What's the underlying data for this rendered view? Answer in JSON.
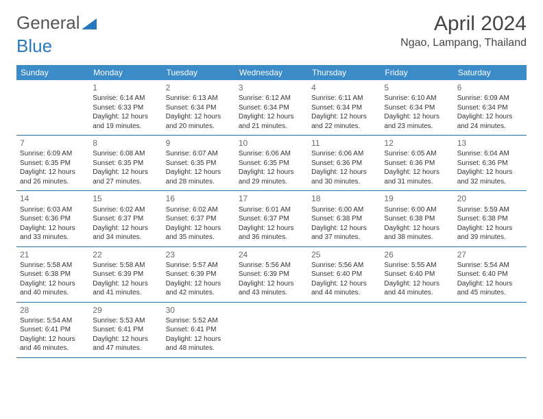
{
  "logo": {
    "part1": "General",
    "part2": "Blue"
  },
  "title": "April 2024",
  "location": "Ngao, Lampang, Thailand",
  "colors": {
    "header_bg": "#3b8bc9",
    "header_text": "#ffffff",
    "row_border": "#2a6fa3",
    "text": "#333333",
    "daynum": "#6a6a6a"
  },
  "weekdays": [
    "Sunday",
    "Monday",
    "Tuesday",
    "Wednesday",
    "Thursday",
    "Friday",
    "Saturday"
  ],
  "grid": {
    "start_offset": 1,
    "days_in_month": 30
  },
  "days": {
    "1": {
      "sunrise": "6:14 AM",
      "sunset": "6:33 PM",
      "daylight": "12 hours and 19 minutes."
    },
    "2": {
      "sunrise": "6:13 AM",
      "sunset": "6:34 PM",
      "daylight": "12 hours and 20 minutes."
    },
    "3": {
      "sunrise": "6:12 AM",
      "sunset": "6:34 PM",
      "daylight": "12 hours and 21 minutes."
    },
    "4": {
      "sunrise": "6:11 AM",
      "sunset": "6:34 PM",
      "daylight": "12 hours and 22 minutes."
    },
    "5": {
      "sunrise": "6:10 AM",
      "sunset": "6:34 PM",
      "daylight": "12 hours and 23 minutes."
    },
    "6": {
      "sunrise": "6:09 AM",
      "sunset": "6:34 PM",
      "daylight": "12 hours and 24 minutes."
    },
    "7": {
      "sunrise": "6:09 AM",
      "sunset": "6:35 PM",
      "daylight": "12 hours and 26 minutes."
    },
    "8": {
      "sunrise": "6:08 AM",
      "sunset": "6:35 PM",
      "daylight": "12 hours and 27 minutes."
    },
    "9": {
      "sunrise": "6:07 AM",
      "sunset": "6:35 PM",
      "daylight": "12 hours and 28 minutes."
    },
    "10": {
      "sunrise": "6:06 AM",
      "sunset": "6:35 PM",
      "daylight": "12 hours and 29 minutes."
    },
    "11": {
      "sunrise": "6:06 AM",
      "sunset": "6:36 PM",
      "daylight": "12 hours and 30 minutes."
    },
    "12": {
      "sunrise": "6:05 AM",
      "sunset": "6:36 PM",
      "daylight": "12 hours and 31 minutes."
    },
    "13": {
      "sunrise": "6:04 AM",
      "sunset": "6:36 PM",
      "daylight": "12 hours and 32 minutes."
    },
    "14": {
      "sunrise": "6:03 AM",
      "sunset": "6:36 PM",
      "daylight": "12 hours and 33 minutes."
    },
    "15": {
      "sunrise": "6:02 AM",
      "sunset": "6:37 PM",
      "daylight": "12 hours and 34 minutes."
    },
    "16": {
      "sunrise": "6:02 AM",
      "sunset": "6:37 PM",
      "daylight": "12 hours and 35 minutes."
    },
    "17": {
      "sunrise": "6:01 AM",
      "sunset": "6:37 PM",
      "daylight": "12 hours and 36 minutes."
    },
    "18": {
      "sunrise": "6:00 AM",
      "sunset": "6:38 PM",
      "daylight": "12 hours and 37 minutes."
    },
    "19": {
      "sunrise": "6:00 AM",
      "sunset": "6:38 PM",
      "daylight": "12 hours and 38 minutes."
    },
    "20": {
      "sunrise": "5:59 AM",
      "sunset": "6:38 PM",
      "daylight": "12 hours and 39 minutes."
    },
    "21": {
      "sunrise": "5:58 AM",
      "sunset": "6:38 PM",
      "daylight": "12 hours and 40 minutes."
    },
    "22": {
      "sunrise": "5:58 AM",
      "sunset": "6:39 PM",
      "daylight": "12 hours and 41 minutes."
    },
    "23": {
      "sunrise": "5:57 AM",
      "sunset": "6:39 PM",
      "daylight": "12 hours and 42 minutes."
    },
    "24": {
      "sunrise": "5:56 AM",
      "sunset": "6:39 PM",
      "daylight": "12 hours and 43 minutes."
    },
    "25": {
      "sunrise": "5:56 AM",
      "sunset": "6:40 PM",
      "daylight": "12 hours and 44 minutes."
    },
    "26": {
      "sunrise": "5:55 AM",
      "sunset": "6:40 PM",
      "daylight": "12 hours and 44 minutes."
    },
    "27": {
      "sunrise": "5:54 AM",
      "sunset": "6:40 PM",
      "daylight": "12 hours and 45 minutes."
    },
    "28": {
      "sunrise": "5:54 AM",
      "sunset": "6:41 PM",
      "daylight": "12 hours and 46 minutes."
    },
    "29": {
      "sunrise": "5:53 AM",
      "sunset": "6:41 PM",
      "daylight": "12 hours and 47 minutes."
    },
    "30": {
      "sunrise": "5:52 AM",
      "sunset": "6:41 PM",
      "daylight": "12 hours and 48 minutes."
    }
  },
  "labels": {
    "sunrise_prefix": "Sunrise: ",
    "sunset_prefix": "Sunset: ",
    "daylight_prefix": "Daylight: "
  }
}
